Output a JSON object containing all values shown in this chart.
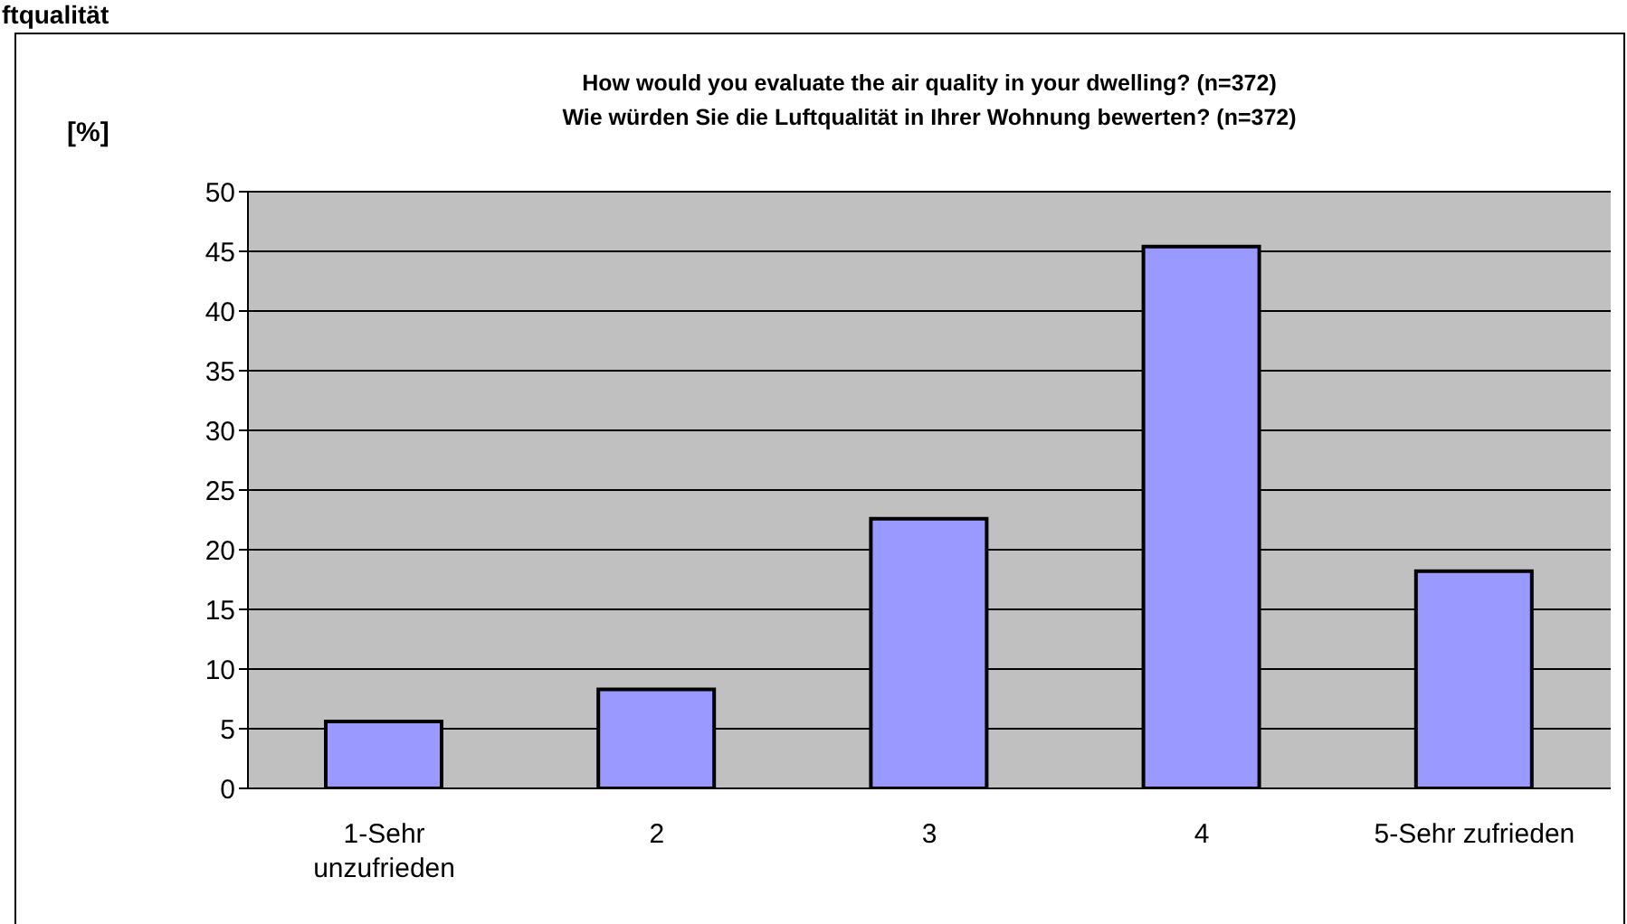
{
  "chart_data": {
    "type": "bar",
    "title": "How would you evaluate the air quality in your dwelling? (n=372)",
    "subtitle": "Wie würden Sie die Luftqualität in Ihrer Wohnung bewerten? (n=372)",
    "ylabel": "[%]",
    "annotations": [
      "ftqualität"
    ],
    "categories": [
      "1-Sehr unzufrieden",
      "2",
      "3",
      "4",
      "5-Sehr zufrieden"
    ],
    "values": [
      5.6,
      8.3,
      22.6,
      45.4,
      18.2
    ],
    "color": "#9999ff",
    "ylim": [
      0,
      50
    ],
    "yticks": [
      0,
      5,
      10,
      15,
      20,
      25,
      30,
      35,
      40,
      45,
      50
    ],
    "grid": "y"
  }
}
